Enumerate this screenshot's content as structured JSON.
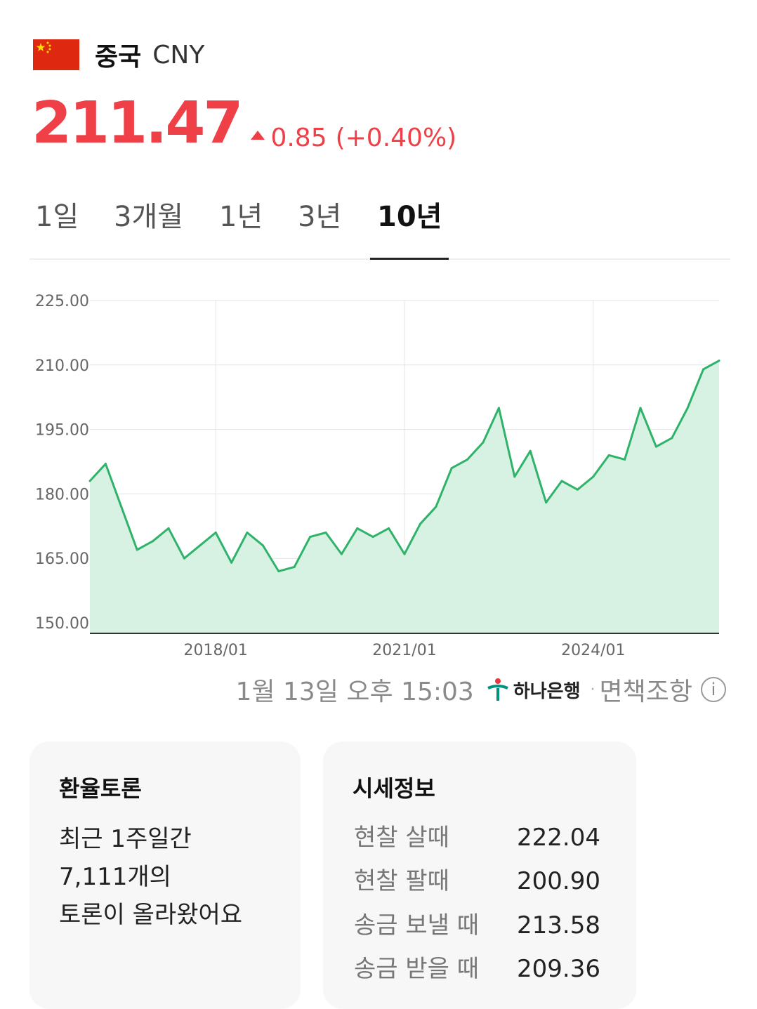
{
  "header": {
    "country": "중국",
    "currency_code": "CNY",
    "flag_icon": "china-flag-icon"
  },
  "quote": {
    "price": "211.47",
    "change": "0.85",
    "change_percent": "(+0.40%)",
    "direction": "up",
    "color": "#ef4047"
  },
  "tabs": [
    {
      "label": "1일",
      "active": false
    },
    {
      "label": "3개월",
      "active": false
    },
    {
      "label": "1년",
      "active": false
    },
    {
      "label": "3년",
      "active": false
    },
    {
      "label": "10년",
      "active": true
    }
  ],
  "chart_data": {
    "type": "area",
    "title": "",
    "xlabel": "",
    "ylabel": "",
    "ylim": [
      150,
      225
    ],
    "y_ticks": [
      "225.00",
      "210.00",
      "195.00",
      "180.00",
      "165.00",
      "150.00"
    ],
    "x_ticks": [
      "2018/01",
      "2021/01",
      "2024/01"
    ],
    "grid": true,
    "line_color": "#2fb36a",
    "fill_color": "#d7f1e2",
    "series": [
      {
        "x": [
          "2016/01",
          "2016/04",
          "2016/07",
          "2016/10",
          "2017/01",
          "2017/04",
          "2017/07",
          "2017/10",
          "2018/01",
          "2018/04",
          "2018/07",
          "2018/10",
          "2019/01",
          "2019/04",
          "2019/07",
          "2019/10",
          "2020/01",
          "2020/04",
          "2020/07",
          "2020/10",
          "2021/01",
          "2021/04",
          "2021/07",
          "2021/10",
          "2022/01",
          "2022/04",
          "2022/07",
          "2022/10",
          "2023/01",
          "2023/04",
          "2023/07",
          "2023/10",
          "2024/01",
          "2024/04",
          "2024/07",
          "2024/10",
          "2025/01",
          "2025/04",
          "2025/07",
          "2025/10",
          "2026/01"
        ],
        "values": [
          183,
          187,
          177,
          167,
          169,
          172,
          165,
          168,
          171,
          164,
          171,
          168,
          162,
          163,
          170,
          171,
          166,
          172,
          170,
          172,
          166,
          173,
          177,
          186,
          188,
          192,
          200,
          184,
          190,
          178,
          183,
          181,
          184,
          189,
          188,
          200,
          191,
          193,
          200,
          209,
          211
        ]
      }
    ]
  },
  "footnote": {
    "timestamp": "1월 13일 오후 15:03",
    "bank": "하나은행",
    "disclaimer": "면책조항",
    "info_icon": "info-icon"
  },
  "discussion": {
    "title": "환율토론",
    "lines": [
      "최근 1주일간",
      "7,111개의",
      "토론이 올라왔어요"
    ]
  },
  "rates": {
    "title": "시세정보",
    "rows": [
      {
        "label": "현찰 살때",
        "value": "222.04"
      },
      {
        "label": "현찰 팔때",
        "value": "200.90"
      },
      {
        "label": "송금 보낼 때",
        "value": "213.58"
      },
      {
        "label": "송금 받을 때",
        "value": "209.36"
      }
    ]
  }
}
